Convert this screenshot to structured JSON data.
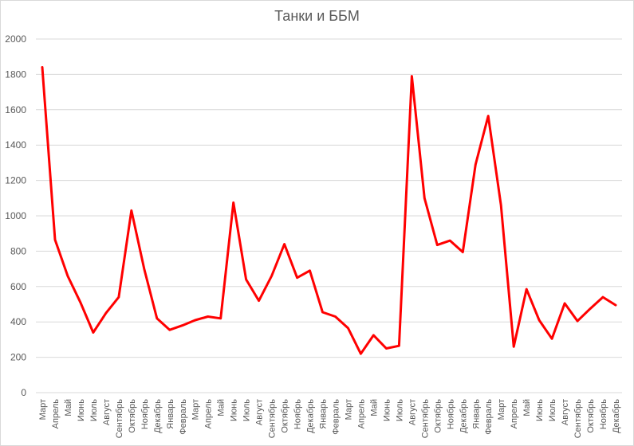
{
  "chart_data": {
    "type": "line",
    "title": "Танки и ББМ",
    "xlabel": "",
    "ylabel": "",
    "ylim": [
      0,
      2000
    ],
    "yticks": [
      0,
      200,
      400,
      600,
      800,
      1000,
      1200,
      1400,
      1600,
      1800,
      2000
    ],
    "grid": true,
    "legend": "none",
    "line_color": "#ff0000",
    "categories": [
      "Март",
      "Апрель",
      "Май",
      "Июнь",
      "Июль",
      "Август",
      "Сентябрь",
      "Октябрь",
      "Ноябрь",
      "Декабрь",
      "Январь",
      "Февраль",
      "Март",
      "Апрель",
      "Май",
      "Июнь",
      "Июль",
      "Август",
      "Сентябрь",
      "Октябрь",
      "Ноябрь",
      "Декабрь",
      "Январь",
      "Февраль",
      "Март",
      "Апрель",
      "Май",
      "Июнь",
      "Июль",
      "Август",
      "Сентябрь",
      "Октябрь",
      "Ноябрь",
      "Декабрь",
      "Январь",
      "Февраль",
      "Март",
      "Апрель",
      "Май",
      "Июнь",
      "Июль",
      "Август",
      "Сентябрь",
      "Октябрь",
      "Ноябрь",
      "Декабрь"
    ],
    "values": [
      1840,
      865,
      660,
      510,
      340,
      450,
      540,
      1030,
      700,
      420,
      355,
      380,
      410,
      430,
      420,
      1075,
      640,
      520,
      660,
      840,
      650,
      690,
      455,
      430,
      365,
      220,
      325,
      250,
      265,
      1790,
      1100,
      835,
      860,
      795,
      1290,
      1565,
      1060,
      260,
      585,
      410,
      305,
      505,
      405,
      475,
      540,
      495
    ]
  }
}
